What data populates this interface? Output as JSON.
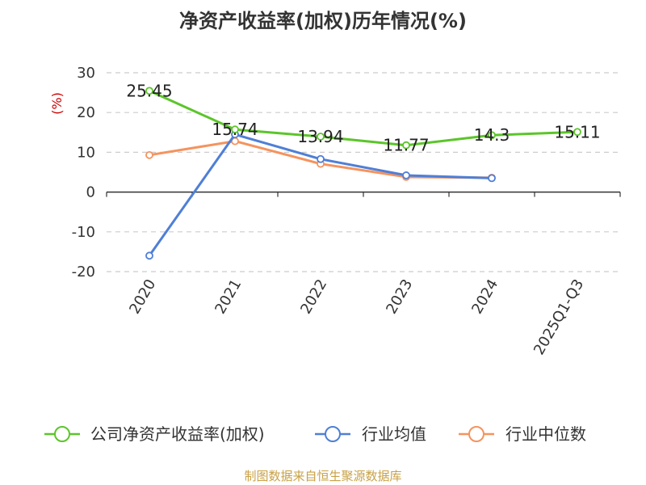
{
  "page": {
    "title": "净资产收益率(加权)历年情况(%)",
    "source": "制图数据来自恒生聚源数据库"
  },
  "chart_data": {
    "type": "line",
    "title": "净资产收益率(加权)历年情况(%)",
    "ylabel": "(%)",
    "xlabel": "",
    "categories": [
      "2020",
      "2021",
      "2022",
      "2023",
      "2024",
      "2025Q1-Q3"
    ],
    "ylim": [
      -20,
      30
    ],
    "yticks": [
      30,
      20,
      10,
      0,
      -10,
      -20
    ],
    "grid": true,
    "legend_position": "bottom",
    "series": [
      {
        "name": "公司净资产收益率(加权)",
        "color": "#5cc52a",
        "values": [
          25.45,
          15.74,
          13.94,
          11.77,
          14.3,
          15.11
        ],
        "labels": [
          "25.45",
          "15.74",
          "13.94",
          "11.77",
          "14.3",
          "15.11"
        ]
      },
      {
        "name": "行业均值",
        "color": "#4f7fd6",
        "values": [
          -16.0,
          14.5,
          8.3,
          4.2,
          3.5,
          null
        ]
      },
      {
        "name": "行业中位数",
        "color": "#f5935e",
        "values": [
          9.3,
          12.8,
          7.1,
          3.8,
          3.6,
          null
        ]
      }
    ]
  }
}
